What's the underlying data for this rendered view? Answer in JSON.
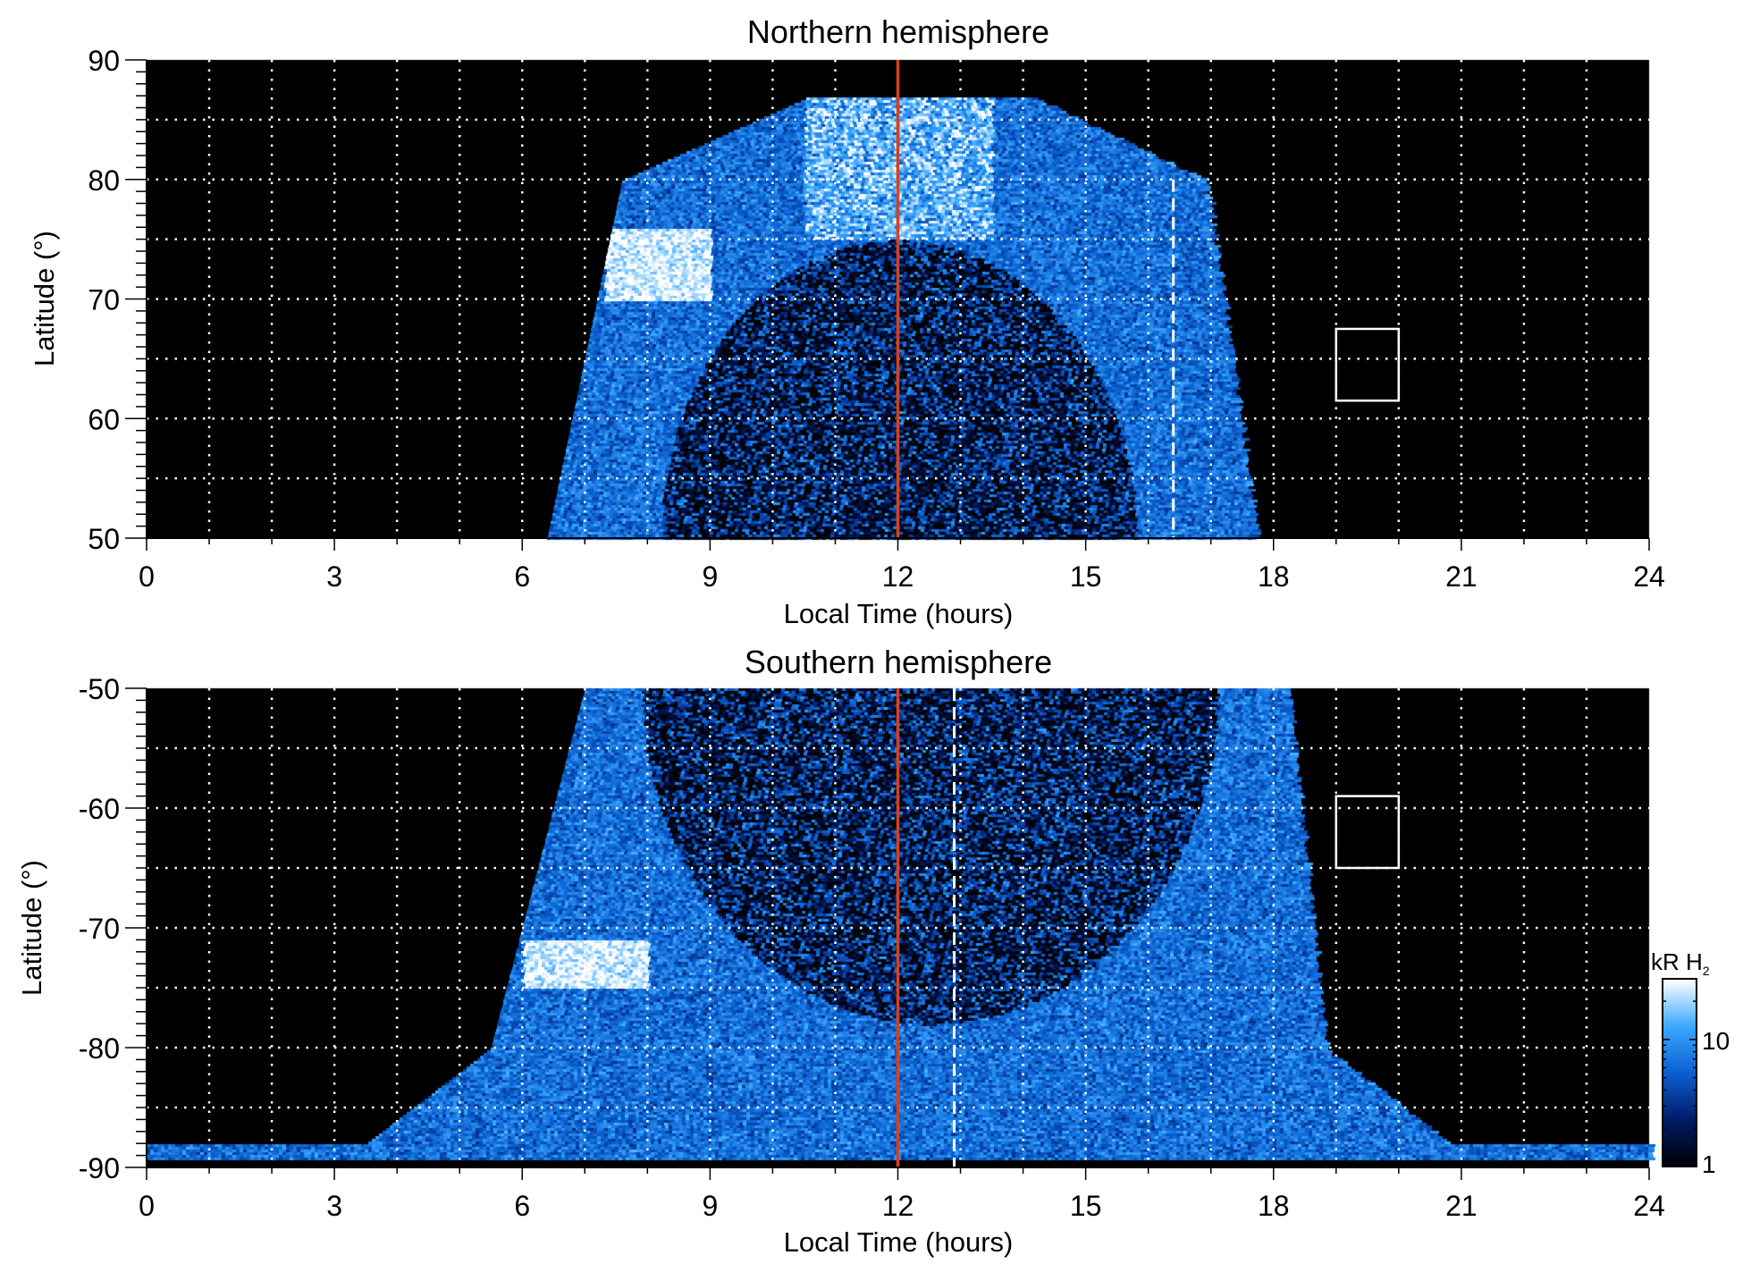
{
  "chart_data": [
    {
      "type": "heatmap",
      "title": "Northern hemisphere",
      "xlabel": "Local Time (hours)",
      "ylabel": "Latitude (°)",
      "xlim": [
        0,
        24
      ],
      "ylim": [
        50,
        90
      ],
      "xticks": [
        "0",
        "3",
        "6",
        "9",
        "12",
        "15",
        "18",
        "21",
        "24"
      ],
      "yticks": [
        "50",
        "60",
        "70",
        "80",
        "90"
      ],
      "grid": "dotted, every 1 h and every 5°",
      "emission_extent": {
        "lt_at_50": [
          6.4,
          17.7
        ],
        "lt_at_80": [
          7.6,
          16.9
        ],
        "max_lat": 87
      },
      "bright_spot": {
        "lt": [
          7.3,
          9.0
        ],
        "lat": [
          70,
          76
        ]
      },
      "reference_lines": [
        {
          "lt": 12.0,
          "style": "solid",
          "color": "#d8401a"
        },
        {
          "lt": 16.4,
          "style": "dashed",
          "color": "#ffffff",
          "lat_range": [
            50,
            80
          ]
        }
      ],
      "box": {
        "lt": [
          19,
          20
        ],
        "lat": [
          61.5,
          67.5
        ]
      }
    },
    {
      "type": "heatmap",
      "title": "Southern hemisphere",
      "xlabel": "Local Time (hours)",
      "ylabel": "Latitude (°)",
      "xlim": [
        0,
        24
      ],
      "ylim": [
        -90,
        -50
      ],
      "xticks": [
        "0",
        "3",
        "6",
        "9",
        "12",
        "15",
        "18",
        "21",
        "24"
      ],
      "yticks": [
        "-90",
        "-80",
        "-70",
        "-60",
        "-50"
      ],
      "grid": "dotted, every 1 h and every 5°",
      "emission_extent": {
        "lt_at_-50": [
          7.0,
          18.2
        ],
        "lt_at_-80": [
          5.5,
          18.8
        ],
        "lt_at_-88.5": [
          0,
          24
        ]
      },
      "bright_spot": {
        "lt": [
          6.0,
          8.0
        ],
        "lat": [
          -75,
          -71
        ]
      },
      "reference_lines": [
        {
          "lt": 12.0,
          "style": "solid",
          "color": "#d8401a"
        },
        {
          "lt": 12.9,
          "style": "dashed",
          "color": "#ffffff",
          "lat_range": [
            -90,
            -50
          ]
        }
      ],
      "box": {
        "lt": [
          19,
          20
        ],
        "lat": [
          -65,
          -59
        ]
      }
    }
  ],
  "colorbar": {
    "label": "kR H",
    "label_subscript": "2",
    "scale": "log",
    "range": [
      1,
      30
    ],
    "tick_labels": [
      "1",
      "10"
    ],
    "tick_values": [
      1,
      10
    ],
    "colors": [
      "#000000",
      "#001a66",
      "#0a5fd0",
      "#3aa8ff",
      "#ffffff"
    ]
  }
}
